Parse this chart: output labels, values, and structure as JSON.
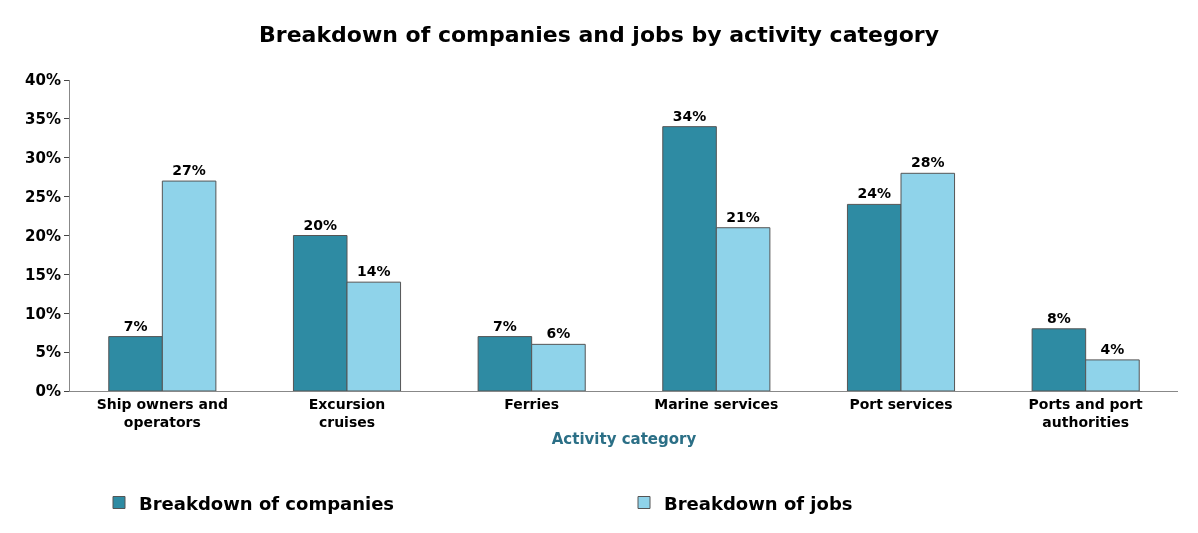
{
  "chart_data": {
    "type": "bar",
    "title": "Breakdown of companies and jobs by activity category",
    "xlabel": "Activity category",
    "categories": [
      "Ship owners and operators",
      "Excursion cruises",
      "Ferries",
      "Marine services",
      "Port services",
      "Ports and port authorities"
    ],
    "series": [
      {
        "name": "Breakdown of companies",
        "color": "#2e8ba3",
        "values": [
          7,
          20,
          7,
          34,
          24,
          8
        ],
        "value_labels": [
          "7%",
          "20%",
          "7%",
          "34%",
          "24%",
          "8%"
        ]
      },
      {
        "name": "Breakdown of jobs",
        "color": "#8fd3ea",
        "values": [
          27,
          14,
          6,
          21,
          28,
          4
        ],
        "value_labels": [
          "27%",
          "14%",
          "6%",
          "21%",
          "28%",
          "4%"
        ]
      }
    ],
    "ylim": [
      0,
      40
    ],
    "yticks": [
      {
        "value": 0,
        "label": "0%"
      },
      {
        "value": 5,
        "label": "5%"
      },
      {
        "value": 10,
        "label": "10%"
      },
      {
        "value": 15,
        "label": "15%"
      },
      {
        "value": 20,
        "label": "20%"
      },
      {
        "value": 25,
        "label": "25%"
      },
      {
        "value": 30,
        "label": "30%"
      },
      {
        "value": 35,
        "label": "35%"
      },
      {
        "value": 40,
        "label": "40%"
      }
    ],
    "grid": false,
    "legend": "bottom"
  }
}
